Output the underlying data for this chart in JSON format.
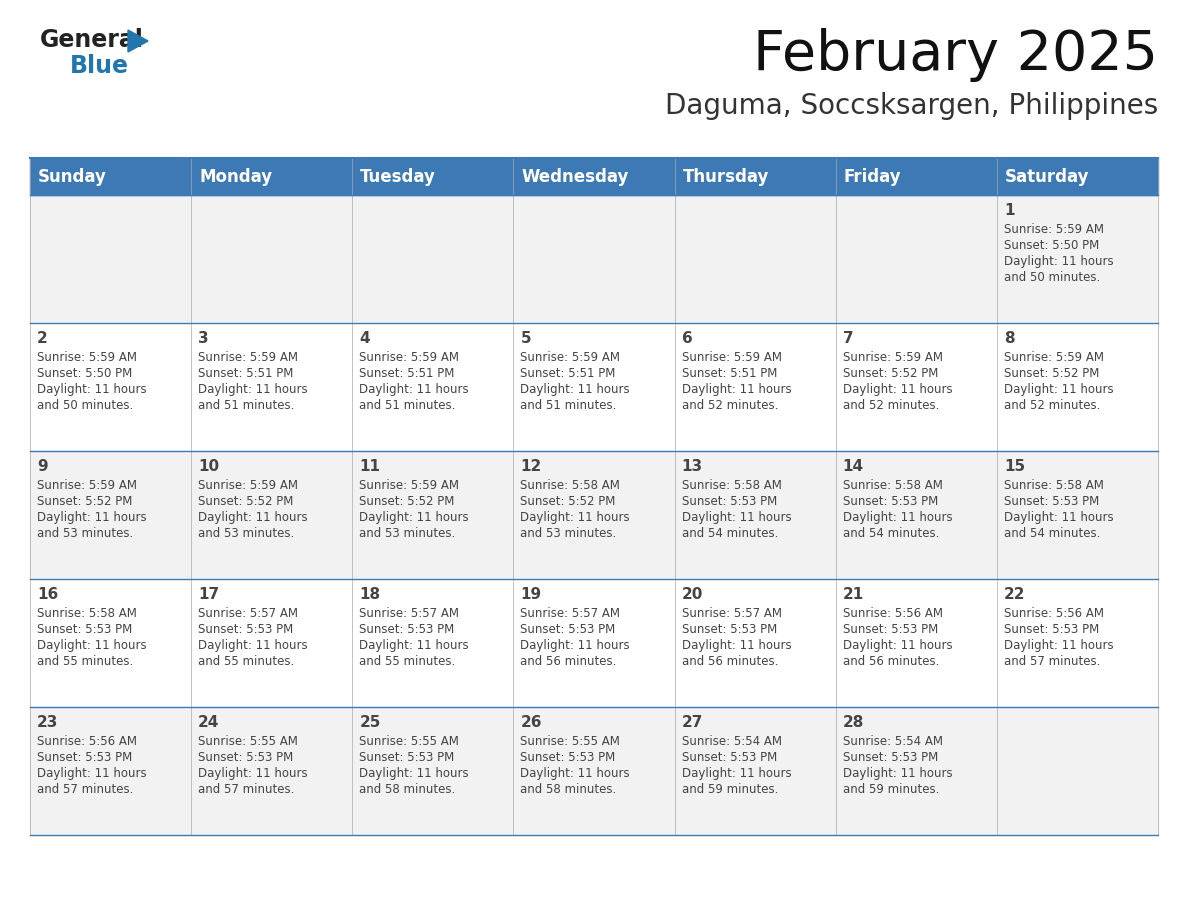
{
  "title": "February 2025",
  "subtitle": "Daguma, Soccsksargen, Philippines",
  "header_bg": "#3D7AB5",
  "header_text_color": "#FFFFFF",
  "day_names": [
    "Sunday",
    "Monday",
    "Tuesday",
    "Wednesday",
    "Thursday",
    "Friday",
    "Saturday"
  ],
  "bg_color": "#FFFFFF",
  "cell_bg_row0": "#F2F2F2",
  "cell_bg_row1": "#FFFFFF",
  "cell_bg_row2": "#F2F2F2",
  "cell_bg_row3": "#FFFFFF",
  "cell_bg_row4": "#F2F2F2",
  "border_color": "#3D7AB5",
  "text_color": "#444444",
  "days": [
    {
      "day": 1,
      "col": 6,
      "row": 0,
      "sunrise": "5:59 AM",
      "sunset": "5:50 PM",
      "daylight": "11 hours and 50 minutes."
    },
    {
      "day": 2,
      "col": 0,
      "row": 1,
      "sunrise": "5:59 AM",
      "sunset": "5:50 PM",
      "daylight": "11 hours and 50 minutes."
    },
    {
      "day": 3,
      "col": 1,
      "row": 1,
      "sunrise": "5:59 AM",
      "sunset": "5:51 PM",
      "daylight": "11 hours and 51 minutes."
    },
    {
      "day": 4,
      "col": 2,
      "row": 1,
      "sunrise": "5:59 AM",
      "sunset": "5:51 PM",
      "daylight": "11 hours and 51 minutes."
    },
    {
      "day": 5,
      "col": 3,
      "row": 1,
      "sunrise": "5:59 AM",
      "sunset": "5:51 PM",
      "daylight": "11 hours and 51 minutes."
    },
    {
      "day": 6,
      "col": 4,
      "row": 1,
      "sunrise": "5:59 AM",
      "sunset": "5:51 PM",
      "daylight": "11 hours and 52 minutes."
    },
    {
      "day": 7,
      "col": 5,
      "row": 1,
      "sunrise": "5:59 AM",
      "sunset": "5:52 PM",
      "daylight": "11 hours and 52 minutes."
    },
    {
      "day": 8,
      "col": 6,
      "row": 1,
      "sunrise": "5:59 AM",
      "sunset": "5:52 PM",
      "daylight": "11 hours and 52 minutes."
    },
    {
      "day": 9,
      "col": 0,
      "row": 2,
      "sunrise": "5:59 AM",
      "sunset": "5:52 PM",
      "daylight": "11 hours and 53 minutes."
    },
    {
      "day": 10,
      "col": 1,
      "row": 2,
      "sunrise": "5:59 AM",
      "sunset": "5:52 PM",
      "daylight": "11 hours and 53 minutes."
    },
    {
      "day": 11,
      "col": 2,
      "row": 2,
      "sunrise": "5:59 AM",
      "sunset": "5:52 PM",
      "daylight": "11 hours and 53 minutes."
    },
    {
      "day": 12,
      "col": 3,
      "row": 2,
      "sunrise": "5:58 AM",
      "sunset": "5:52 PM",
      "daylight": "11 hours and 53 minutes."
    },
    {
      "day": 13,
      "col": 4,
      "row": 2,
      "sunrise": "5:58 AM",
      "sunset": "5:53 PM",
      "daylight": "11 hours and 54 minutes."
    },
    {
      "day": 14,
      "col": 5,
      "row": 2,
      "sunrise": "5:58 AM",
      "sunset": "5:53 PM",
      "daylight": "11 hours and 54 minutes."
    },
    {
      "day": 15,
      "col": 6,
      "row": 2,
      "sunrise": "5:58 AM",
      "sunset": "5:53 PM",
      "daylight": "11 hours and 54 minutes."
    },
    {
      "day": 16,
      "col": 0,
      "row": 3,
      "sunrise": "5:58 AM",
      "sunset": "5:53 PM",
      "daylight": "11 hours and 55 minutes."
    },
    {
      "day": 17,
      "col": 1,
      "row": 3,
      "sunrise": "5:57 AM",
      "sunset": "5:53 PM",
      "daylight": "11 hours and 55 minutes."
    },
    {
      "day": 18,
      "col": 2,
      "row": 3,
      "sunrise": "5:57 AM",
      "sunset": "5:53 PM",
      "daylight": "11 hours and 55 minutes."
    },
    {
      "day": 19,
      "col": 3,
      "row": 3,
      "sunrise": "5:57 AM",
      "sunset": "5:53 PM",
      "daylight": "11 hours and 56 minutes."
    },
    {
      "day": 20,
      "col": 4,
      "row": 3,
      "sunrise": "5:57 AM",
      "sunset": "5:53 PM",
      "daylight": "11 hours and 56 minutes."
    },
    {
      "day": 21,
      "col": 5,
      "row": 3,
      "sunrise": "5:56 AM",
      "sunset": "5:53 PM",
      "daylight": "11 hours and 56 minutes."
    },
    {
      "day": 22,
      "col": 6,
      "row": 3,
      "sunrise": "5:56 AM",
      "sunset": "5:53 PM",
      "daylight": "11 hours and 57 minutes."
    },
    {
      "day": 23,
      "col": 0,
      "row": 4,
      "sunrise": "5:56 AM",
      "sunset": "5:53 PM",
      "daylight": "11 hours and 57 minutes."
    },
    {
      "day": 24,
      "col": 1,
      "row": 4,
      "sunrise": "5:55 AM",
      "sunset": "5:53 PM",
      "daylight": "11 hours and 57 minutes."
    },
    {
      "day": 25,
      "col": 2,
      "row": 4,
      "sunrise": "5:55 AM",
      "sunset": "5:53 PM",
      "daylight": "11 hours and 58 minutes."
    },
    {
      "day": 26,
      "col": 3,
      "row": 4,
      "sunrise": "5:55 AM",
      "sunset": "5:53 PM",
      "daylight": "11 hours and 58 minutes."
    },
    {
      "day": 27,
      "col": 4,
      "row": 4,
      "sunrise": "5:54 AM",
      "sunset": "5:53 PM",
      "daylight": "11 hours and 59 minutes."
    },
    {
      "day": 28,
      "col": 5,
      "row": 4,
      "sunrise": "5:54 AM",
      "sunset": "5:53 PM",
      "daylight": "11 hours and 59 minutes."
    }
  ],
  "num_rows": 5,
  "logo_general_color": "#222222",
  "logo_blue_color": "#2176AE",
  "logo_triangle_color": "#2176AE",
  "title_fontsize": 40,
  "subtitle_fontsize": 20,
  "dayname_fontsize": 12,
  "daynum_fontsize": 11,
  "info_fontsize": 8.5
}
